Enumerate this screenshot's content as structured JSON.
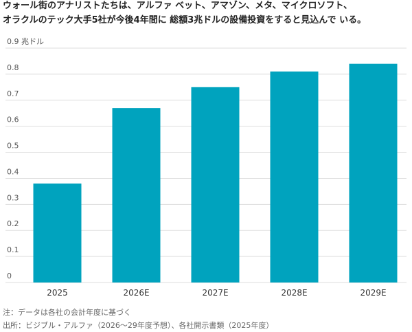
{
  "chart_data": {
    "type": "bar",
    "title": [
      "ウォール街のアナリストたちは、アルファ ベット、アマゾン、メタ、マイクロソフト、",
      "オラクルのテック大手5社が今後4年間に 総額3兆ドルの設備投資をすると見込んで いる。"
    ],
    "categories": [
      "2025",
      "2026E",
      "2027E",
      "2028E",
      "2029E"
    ],
    "values": [
      0.38,
      0.67,
      0.75,
      0.81,
      0.84
    ],
    "color": "#00a3be",
    "ylim": [
      0,
      0.9
    ],
    "yticks": [
      0,
      0.1,
      0.2,
      0.3,
      0.4,
      0.5,
      0.6,
      0.7,
      0.8,
      {
        "value": 0.9,
        "label": "0.9 兆ドル"
      }
    ],
    "grid": true,
    "notes": [
      "注：データは各社の会計年度に基づく",
      "出所：ビジブル・アルファ（2026〜29年度予想）、各社開示書類（2025年度）"
    ]
  }
}
